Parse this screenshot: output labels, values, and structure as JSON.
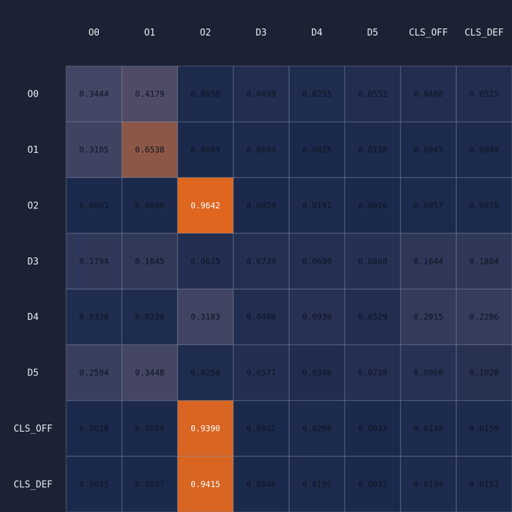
{
  "chart_data": {
    "type": "heatmap",
    "title": "",
    "xlabel": "",
    "ylabel": "",
    "columns": [
      "O0",
      "O1",
      "O2",
      "D3",
      "D4",
      "D5",
      "CLS_OFF",
      "CLS_DEF"
    ],
    "rows": [
      "O0",
      "O1",
      "O2",
      "D3",
      "D4",
      "D5",
      "CLS_OFF",
      "CLS_DEF"
    ],
    "values": [
      [
        0.3444,
        0.4179,
        0.0058,
        0.0499,
        0.0255,
        0.0552,
        0.0488,
        0.0525
      ],
      [
        0.3105,
        0.6538,
        0.0003,
        0.0104,
        0.0025,
        0.0138,
        0.0043,
        0.0044
      ],
      [
        0.0001,
        0.0,
        0.9642,
        0.0024,
        0.0191,
        0.0016,
        0.0057,
        0.007
      ],
      [
        0.1794,
        0.1845,
        0.0625,
        0.0739,
        0.069,
        0.086,
        0.1644,
        0.1804
      ],
      [
        0.0328,
        0.023,
        0.3183,
        0.0498,
        0.093,
        0.0529,
        0.2015,
        0.2286
      ],
      [
        0.2594,
        0.3448,
        0.0258,
        0.0577,
        0.0398,
        0.0738,
        0.096,
        0.1028
      ],
      [
        0.0028,
        0.0008,
        0.939,
        0.0042,
        0.02,
        0.0033,
        0.014,
        0.0159
      ],
      [
        0.0025,
        0.0007,
        0.9415,
        0.004,
        0.0195,
        0.0032,
        0.0134,
        0.0152
      ]
    ],
    "value_range": [
      0,
      1
    ],
    "colors": {
      "background": "#1c2233",
      "cell_low": "#1b2a4c",
      "cell_mid": "#4a4a68",
      "cell_high": "#e8681a",
      "grid_line": "#8a93ab",
      "label_text": "#e8ecf4",
      "value_text_dark": "#0d1322",
      "value_text_light": "#ffffff"
    }
  }
}
